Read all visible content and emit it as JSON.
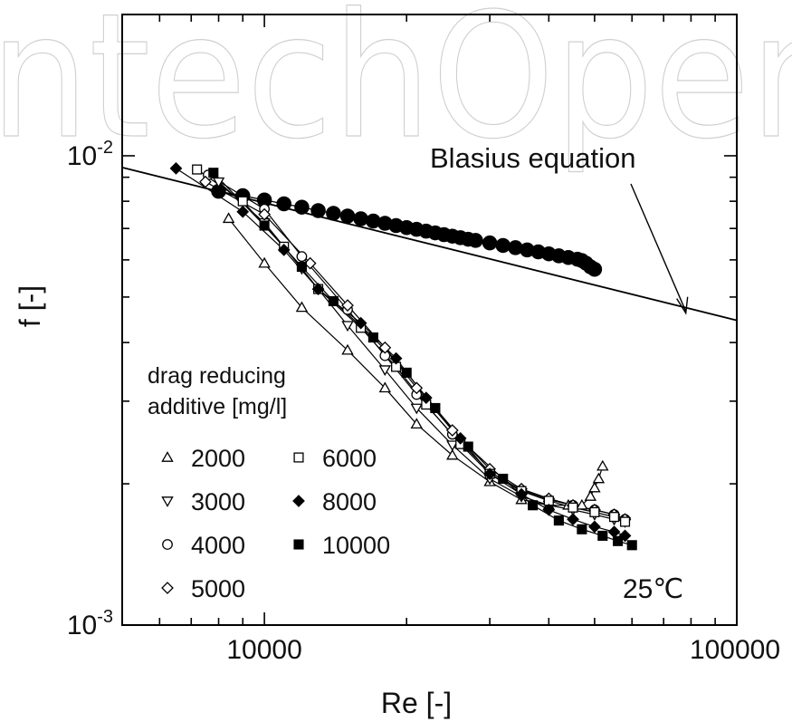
{
  "chart_data": {
    "type": "scatter",
    "xlabel": "Re [-]",
    "ylabel": "f [-]",
    "xscale": "log",
    "yscale": "log",
    "xlim": [
      5000,
      100000
    ],
    "ylim": [
      0.001,
      0.02
    ],
    "x_tick_labels": [
      "10000",
      "100000"
    ],
    "y_tick_labels": [
      {
        "base": "10",
        "exp": "-3"
      },
      {
        "base": "10",
        "exp": "-2"
      }
    ],
    "watermark": "IntechOpen",
    "reference_line": {
      "label": "Blasius equation",
      "points": [
        [
          5000,
          0.00944
        ],
        [
          100000,
          0.00446
        ]
      ]
    },
    "legend_title": [
      "drag reducing",
      "additive [mg/l]"
    ],
    "temperature_label": "25℃",
    "water_series": {
      "marker": "filled-circle",
      "x": [
        8000,
        9000,
        10000,
        11000,
        12000,
        13000,
        14000,
        15000,
        16000,
        17000,
        18000,
        19000,
        20000,
        21000,
        22000,
        23000,
        24000,
        25000,
        26000,
        27000,
        28000,
        30000,
        32000,
        34000,
        36000,
        38000,
        40000,
        42000,
        44000,
        46000,
        47000,
        48000,
        49000,
        50000
      ],
      "y": [
        0.0084,
        0.00822,
        0.00805,
        0.0079,
        0.00777,
        0.00764,
        0.00754,
        0.00744,
        0.00734,
        0.00726,
        0.00718,
        0.0071,
        0.00703,
        0.00697,
        0.00691,
        0.00685,
        0.00679,
        0.00674,
        0.00669,
        0.00664,
        0.0066,
        0.00652,
        0.00644,
        0.00637,
        0.0063,
        0.00624,
        0.00618,
        0.00612,
        0.00607,
        0.00602,
        0.00598,
        0.0059,
        0.0058,
        0.00573
      ]
    },
    "series": [
      {
        "name": "2000",
        "marker": "triangle-up",
        "x": [
          8400,
          10000,
          12000,
          15000,
          18000,
          21000,
          25000,
          30000,
          35000,
          40000,
          44000,
          47000,
          49000,
          50000,
          51000,
          52000
        ],
        "y": [
          0.00735,
          0.0059,
          0.00475,
          0.00385,
          0.0032,
          0.00268,
          0.0023,
          0.00202,
          0.00185,
          0.0018,
          0.0018,
          0.0018,
          0.00188,
          0.00196,
          0.00205,
          0.00218
        ]
      },
      {
        "name": "3000",
        "marker": "triangle-down",
        "x": [
          8000,
          10000,
          12000,
          15000,
          18000,
          21000,
          25000,
          30000,
          35000,
          40000,
          45000,
          50000,
          55000,
          58000
        ],
        "y": [
          0.0088,
          0.0072,
          0.00575,
          0.00435,
          0.0035,
          0.0029,
          0.00242,
          0.00205,
          0.00188,
          0.0018,
          0.00176,
          0.00172,
          0.00168,
          0.00166
        ]
      },
      {
        "name": "4000",
        "marker": "open-circle",
        "x": [
          7600,
          10000,
          12000,
          15000,
          18000,
          21000,
          25000,
          30000,
          35000,
          40000,
          45000,
          50000,
          55000,
          58000
        ],
        "y": [
          0.0091,
          0.0077,
          0.0061,
          0.0047,
          0.00375,
          0.0031,
          0.00255,
          0.00212,
          0.00194,
          0.00185,
          0.0018,
          0.00176,
          0.00172,
          0.00168
        ]
      },
      {
        "name": "5000",
        "marker": "open-diamond",
        "x": [
          7500,
          10000,
          12500,
          15000,
          18000,
          21000,
          25000,
          30000,
          35000,
          40000,
          45000,
          50000,
          55000,
          58000
        ],
        "y": [
          0.0088,
          0.0075,
          0.0059,
          0.0048,
          0.0039,
          0.0032,
          0.0026,
          0.00215,
          0.00195,
          0.00186,
          0.0018,
          0.00176,
          0.00172,
          0.00168
        ]
      },
      {
        "name": "6000",
        "marker": "open-square",
        "x": [
          7200,
          9000,
          11000,
          13000,
          16000,
          19000,
          22000,
          26000,
          30000,
          35000,
          40000,
          45000,
          50000,
          55000,
          58000
        ],
        "y": [
          0.00935,
          0.008,
          0.0064,
          0.0052,
          0.0043,
          0.00355,
          0.00295,
          0.00243,
          0.0021,
          0.00193,
          0.00184,
          0.00178,
          0.00174,
          0.0017,
          0.00166
        ]
      },
      {
        "name": "8000",
        "marker": "filled-diamond",
        "x": [
          6500,
          9000,
          11000,
          13000,
          16000,
          19000,
          22000,
          26000,
          30000,
          35000,
          40000,
          45000,
          50000,
          55000,
          58000
        ],
        "y": [
          0.0094,
          0.0076,
          0.0063,
          0.0052,
          0.0044,
          0.0037,
          0.00305,
          0.0025,
          0.0021,
          0.0019,
          0.00176,
          0.00168,
          0.00162,
          0.00158,
          0.00155
        ]
      },
      {
        "name": "10000",
        "marker": "filled-square",
        "x": [
          7800,
          10000,
          12000,
          14000,
          17000,
          20000,
          23000,
          27000,
          32000,
          37000,
          42000,
          47000,
          52000,
          56000,
          60000
        ],
        "y": [
          0.0092,
          0.0071,
          0.0058,
          0.0049,
          0.0041,
          0.00345,
          0.0029,
          0.0024,
          0.00205,
          0.0018,
          0.00167,
          0.0016,
          0.00155,
          0.00151,
          0.00148
        ]
      }
    ]
  }
}
